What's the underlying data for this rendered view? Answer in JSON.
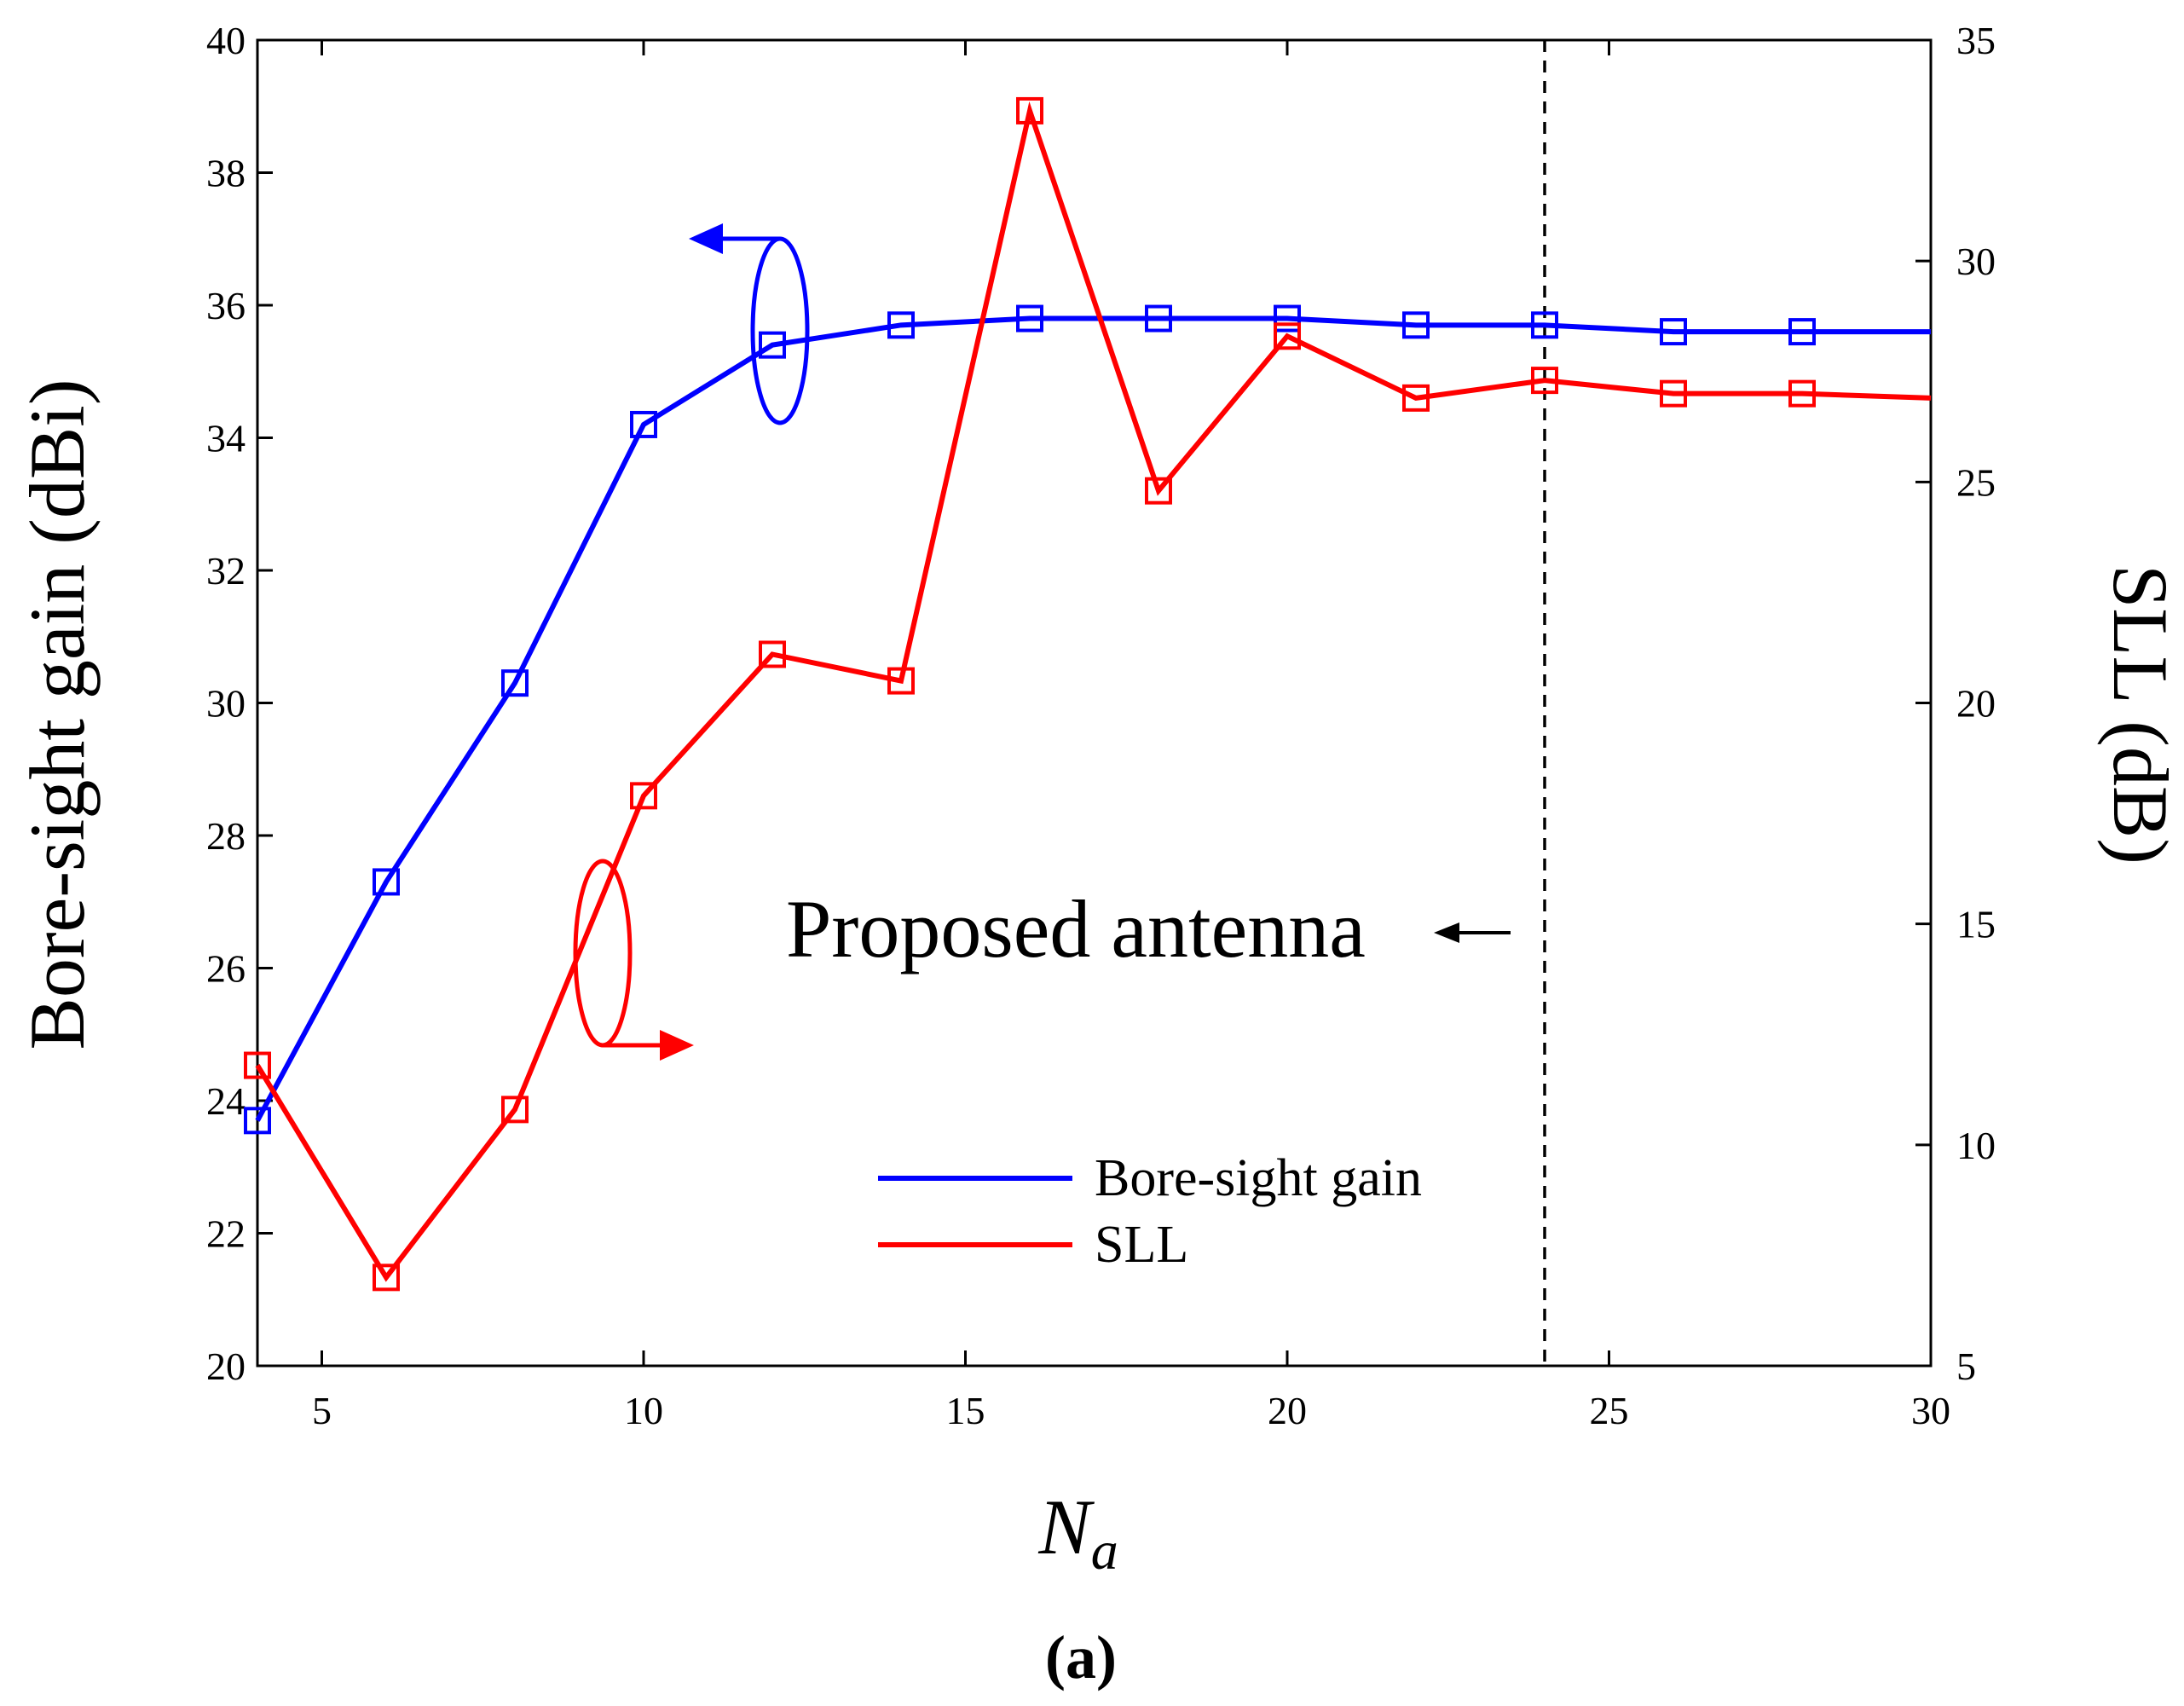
{
  "chart_data": {
    "type": "line",
    "panel_label": "(a)",
    "x": [
      4,
      6,
      8,
      10,
      12,
      14,
      16,
      18,
      20,
      22,
      24,
      26,
      28,
      30
    ],
    "xlabel_main": "N",
    "xlabel_sub": "a",
    "ylabel_left": "Bore-sight gain (dBi)",
    "ylabel_right": "SLL (dB)",
    "xlim": [
      4,
      30
    ],
    "ylim_left": [
      20,
      40
    ],
    "ylim_right": [
      5,
      35
    ],
    "xticks": [
      5,
      10,
      15,
      20,
      25,
      30
    ],
    "yticks_left": [
      20,
      22,
      24,
      26,
      28,
      30,
      32,
      34,
      36,
      38,
      40
    ],
    "yticks_right": [
      5,
      10,
      15,
      20,
      25,
      30,
      35
    ],
    "series": [
      {
        "name": "Bore-sight gain",
        "axis": "left",
        "color": "#0000ff",
        "values": [
          23.7,
          27.3,
          30.3,
          34.2,
          35.4,
          35.7,
          35.8,
          35.8,
          35.8,
          35.7,
          35.7,
          35.6,
          35.6,
          35.6
        ],
        "markers": [
          true,
          true,
          true,
          true,
          true,
          true,
          true,
          true,
          true,
          true,
          true,
          true,
          true,
          false
        ]
      },
      {
        "name": "SLL",
        "axis": "right",
        "color": "#ff0000",
        "values": [
          11.8,
          7.0,
          10.8,
          17.9,
          21.1,
          20.5,
          33.4,
          24.8,
          28.3,
          26.9,
          27.3,
          27.0,
          27.0,
          26.9
        ],
        "markers": [
          true,
          true,
          true,
          true,
          true,
          true,
          true,
          true,
          true,
          true,
          true,
          true,
          true,
          false
        ]
      }
    ],
    "vline_x": 24,
    "annotation": "Proposed antenna",
    "legend_position": "bottom-center"
  }
}
